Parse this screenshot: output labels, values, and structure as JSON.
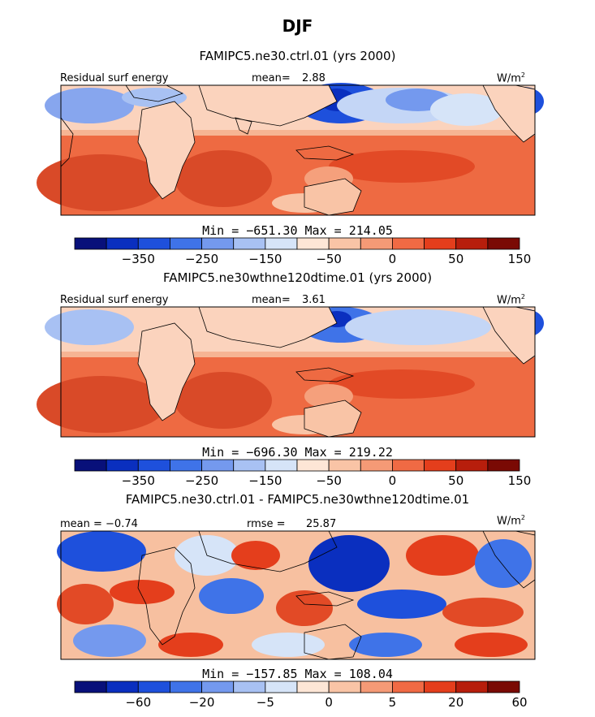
{
  "title": "DJF",
  "panels": [
    {
      "subtitle": "FAMIPC5.ne30.ctrl.01 (yrs 2000)",
      "left_label": "Residual surf energy",
      "mean_label": "mean=",
      "mean_value": "2.88",
      "unit": "W/m",
      "unit_sup": "2",
      "stats": "Min = −651.30 Max = 214.05",
      "colorbar_ticks": [
        "−350",
        "−250",
        "−150",
        "−50",
        "0",
        "50",
        "150"
      ],
      "palette": "abs"
    },
    {
      "subtitle": "FAMIPC5.ne30wthne120dtime.01 (yrs 2000)",
      "left_label": "Residual surf energy",
      "mean_label": "mean=",
      "mean_value": "3.61",
      "unit": "W/m",
      "unit_sup": "2",
      "stats": "Min = −696.30 Max = 219.22",
      "colorbar_ticks": [
        "−350",
        "−250",
        "−150",
        "−50",
        "0",
        "50",
        "150"
      ],
      "palette": "abs"
    },
    {
      "subtitle": "FAMIPC5.ne30.ctrl.01 - FAMIPC5.ne30wthne120dtime.01",
      "left_label": "mean = −0.74",
      "mean_label": "rmse =",
      "mean_value": "25.87",
      "unit": "W/m",
      "unit_sup": "2",
      "stats": "Min = −157.85 Max = 108.04",
      "colorbar_ticks": [
        "−60",
        "−20",
        "−5",
        "0",
        "5",
        "20",
        "60"
      ],
      "palette": "diff"
    }
  ],
  "colors": {
    "colorbar": [
      "#08107a",
      "#0a2fbf",
      "#1e50dc",
      "#3f73e8",
      "#7499ee",
      "#a8c1f3",
      "#d6e4f8",
      "#fde6d6",
      "#f9c4a6",
      "#f59a76",
      "#f06a44",
      "#e43e1c",
      "#b71e0c",
      "#7a0a04"
    ]
  },
  "chart_data": [
    {
      "type": "heatmap",
      "title": "FAMIPC5.ne30.ctrl.01 (yrs 2000)",
      "variable": "Residual surf energy",
      "units": "W/m2",
      "mean": 2.88,
      "min": -651.3,
      "max": 214.05,
      "colorbar_ticks": [
        -350,
        -250,
        -150,
        -50,
        0,
        50,
        150
      ]
    },
    {
      "type": "heatmap",
      "title": "FAMIPC5.ne30wthne120dtime.01 (yrs 2000)",
      "variable": "Residual surf energy",
      "units": "W/m2",
      "mean": 3.61,
      "min": -696.3,
      "max": 219.22,
      "colorbar_ticks": [
        -350,
        -250,
        -150,
        -50,
        0,
        50,
        150
      ]
    },
    {
      "type": "heatmap",
      "title": "FAMIPC5.ne30.ctrl.01 - FAMIPC5.ne30wthne120dtime.01",
      "units": "W/m2",
      "mean": -0.74,
      "rmse": 25.87,
      "min": -157.85,
      "max": 108.04,
      "colorbar_ticks": [
        -60,
        -20,
        -5,
        0,
        5,
        20,
        60
      ]
    }
  ]
}
